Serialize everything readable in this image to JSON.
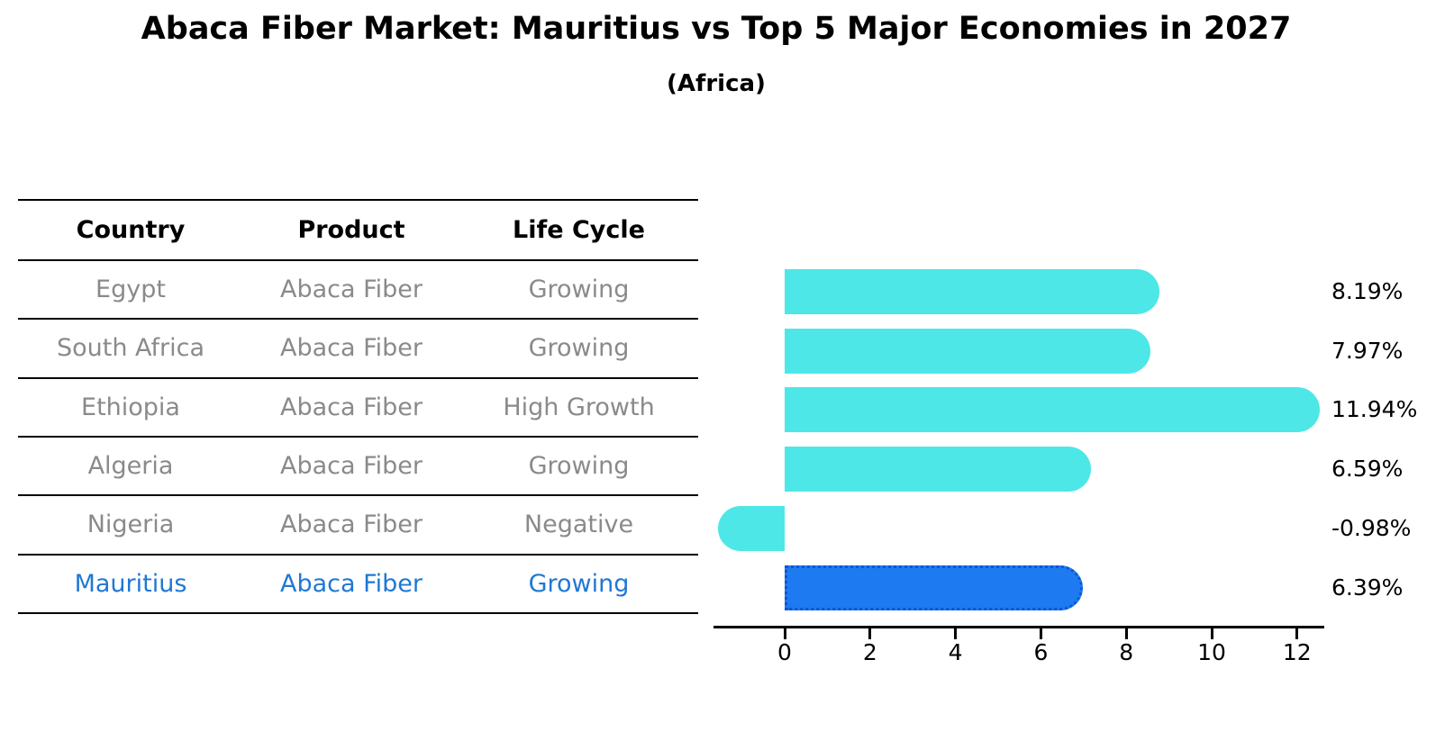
{
  "title": "Abaca Fiber Market: Mauritius vs Top 5 Major Economies in 2027",
  "subtitle": "(Africa)",
  "colors": {
    "bar_cyan": "#4de7e7",
    "bar_blue": "#1e7af0",
    "bar_blue_border": "#0d55d6",
    "highlight_text": "#1f78d4",
    "table_text": "#8a8a8a",
    "axis": "#000000"
  },
  "table": {
    "headers": [
      "Country",
      "Product",
      "Life Cycle"
    ],
    "rows": [
      {
        "country": "Egypt",
        "product": "Abaca Fiber",
        "life_cycle": "Growing"
      },
      {
        "country": "South Africa",
        "product": "Abaca Fiber",
        "life_cycle": "Growing"
      },
      {
        "country": "Ethiopia",
        "product": "Abaca Fiber",
        "life_cycle": "High Growth"
      },
      {
        "country": "Algeria",
        "product": "Abaca Fiber",
        "life_cycle": "Growing"
      },
      {
        "country": "Nigeria",
        "product": "Abaca Fiber",
        "life_cycle": "Negative"
      },
      {
        "country": "Mauritius",
        "product": "Abaca Fiber",
        "life_cycle": "Growing"
      }
    ],
    "highlight_row": "Mauritius"
  },
  "chart_data": {
    "type": "bar",
    "orientation": "horizontal",
    "title": "Abaca Fiber Market: Mauritius vs Top 5 Major Economies in 2027",
    "subtitle": "(Africa)",
    "categories": [
      "Egypt",
      "South Africa",
      "Ethiopia",
      "Algeria",
      "Nigeria",
      "Mauritius"
    ],
    "values": [
      8.19,
      7.97,
      11.94,
      6.59,
      -0.98,
      6.39
    ],
    "value_labels": [
      "8.19%",
      "7.97%",
      "11.94%",
      "6.59%",
      "-0.98%",
      "6.39%"
    ],
    "x_ticks": [
      0,
      2,
      4,
      6,
      8,
      10,
      12
    ],
    "xlim": [
      -1.7,
      12.7
    ],
    "xlabel": "",
    "ylabel": "",
    "grid": false,
    "legend": "none",
    "bar_color": "#4de7e7",
    "highlight_index": 5,
    "highlight_color": "#1e7af0",
    "highlight_border_color": "#0d55d6"
  }
}
